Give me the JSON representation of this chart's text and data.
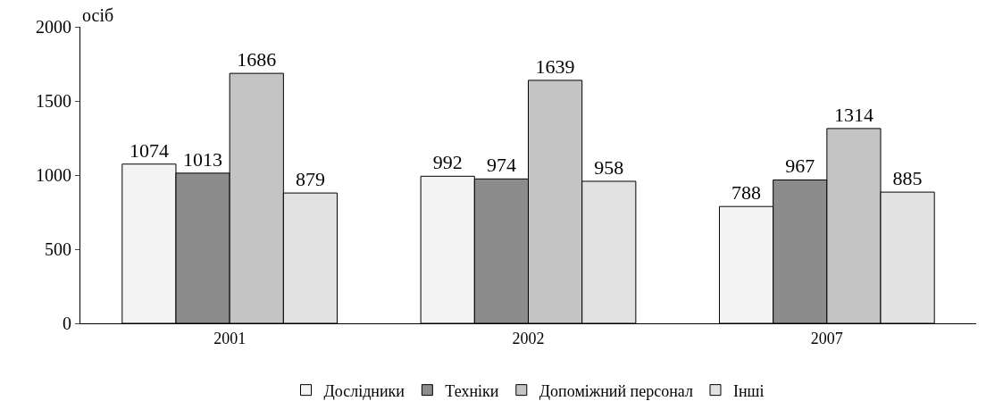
{
  "chart_data": {
    "type": "bar",
    "ylabel": "осіб",
    "categories": [
      "2001",
      "2002",
      "2007"
    ],
    "series": [
      {
        "name": "Дослідники",
        "color": "#f4f4f4",
        "values": [
          1074,
          992,
          788
        ]
      },
      {
        "name": "Техніки",
        "color": "#8c8c8c",
        "values": [
          1013,
          974,
          967
        ]
      },
      {
        "name": "Допоміжний персонал",
        "color": "#c4c4c4",
        "values": [
          1686,
          1639,
          1314
        ]
      },
      {
        "name": "Інші",
        "color": "#e2e2e2",
        "values": [
          879,
          958,
          885
        ]
      }
    ],
    "ylim": [
      0,
      2000
    ],
    "yticks": [
      0,
      500,
      1000,
      1500,
      2000
    ],
    "legend": "bottom",
    "data_labels": true
  }
}
